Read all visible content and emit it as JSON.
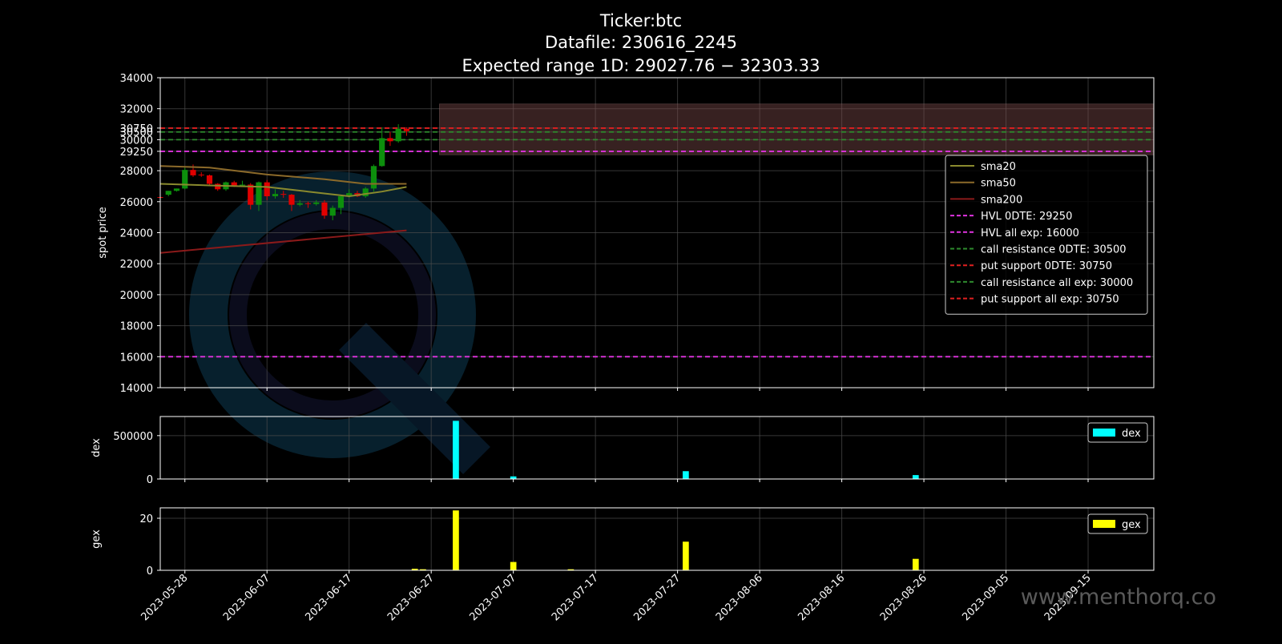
{
  "title": {
    "line1": "Ticker:btc",
    "line2": "Datafile: 230616_2245",
    "line3": "Expected range 1D: 29027.76 − 32303.33"
  },
  "watermark": {
    "text": "www.menthorq.co",
    "logo_icon": "menthorq-q-logo"
  },
  "colors": {
    "background": "#000000",
    "axes": "#ffffff",
    "grid": "#4d4d4d",
    "up_candle": "#0d8f0d",
    "down_candle": "#e00000",
    "sma20": "#8a8a2e",
    "sma50": "#8c6a2a",
    "sma200": "#8b1a1a",
    "hvl": "#e033e0",
    "call_resistance": "#2e8b2e",
    "put_support": "#e02020",
    "expected_range": "#7a4a4a",
    "dex": "#00ffff",
    "gex": "#ffff00",
    "watermark": "#5a5a5a"
  },
  "chart_data": [
    {
      "id": "price",
      "type": "candlestick",
      "ylabel": "spot price",
      "ylim": [
        14000,
        34000
      ],
      "yticks": [
        14000,
        16000,
        18000,
        20000,
        22000,
        24000,
        26000,
        28000,
        29250,
        30000,
        30500,
        30750,
        32000,
        34000
      ],
      "xlim": [
        "2023-05-25",
        "2023-09-23"
      ],
      "grid": true,
      "legend": "right",
      "expected_range": [
        29027.76,
        32303.33
      ],
      "expected_range_start": "2023-06-28",
      "candles": [
        {
          "date": "2023-05-25",
          "o": 26300,
          "h": 26400,
          "l": 26100,
          "c": 26250
        },
        {
          "date": "2023-05-26",
          "o": 26450,
          "h": 26700,
          "l": 26350,
          "c": 26700
        },
        {
          "date": "2023-05-27",
          "o": 26700,
          "h": 26850,
          "l": 26650,
          "c": 26850
        },
        {
          "date": "2023-05-28",
          "o": 26850,
          "h": 28200,
          "l": 26800,
          "c": 28050
        },
        {
          "date": "2023-05-29",
          "o": 28050,
          "h": 28400,
          "l": 27600,
          "c": 27700
        },
        {
          "date": "2023-05-30",
          "o": 27750,
          "h": 27900,
          "l": 27600,
          "c": 27700
        },
        {
          "date": "2023-05-31",
          "o": 27700,
          "h": 27750,
          "l": 27000,
          "c": 27150
        },
        {
          "date": "2023-06-01",
          "o": 27150,
          "h": 27200,
          "l": 26700,
          "c": 26800
        },
        {
          "date": "2023-06-02",
          "o": 26800,
          "h": 27300,
          "l": 26700,
          "c": 27250
        },
        {
          "date": "2023-06-03",
          "o": 27250,
          "h": 27350,
          "l": 26950,
          "c": 27050
        },
        {
          "date": "2023-06-04",
          "o": 27050,
          "h": 27350,
          "l": 26950,
          "c": 27100
        },
        {
          "date": "2023-06-05",
          "o": 27100,
          "h": 27200,
          "l": 25500,
          "c": 25800
        },
        {
          "date": "2023-06-06",
          "o": 25800,
          "h": 27300,
          "l": 25400,
          "c": 27250
        },
        {
          "date": "2023-06-07",
          "o": 27250,
          "h": 27400,
          "l": 26100,
          "c": 26350
        },
        {
          "date": "2023-06-08",
          "o": 26350,
          "h": 26800,
          "l": 26200,
          "c": 26500
        },
        {
          "date": "2023-06-09",
          "o": 26500,
          "h": 26700,
          "l": 26250,
          "c": 26450
        },
        {
          "date": "2023-06-10",
          "o": 26450,
          "h": 26500,
          "l": 25400,
          "c": 25800
        },
        {
          "date": "2023-06-11",
          "o": 25800,
          "h": 26100,
          "l": 25700,
          "c": 25900
        },
        {
          "date": "2023-06-12",
          "o": 25900,
          "h": 26000,
          "l": 25600,
          "c": 25850
        },
        {
          "date": "2023-06-13",
          "o": 25850,
          "h": 26100,
          "l": 25750,
          "c": 25950
        },
        {
          "date": "2023-06-14",
          "o": 25950,
          "h": 26100,
          "l": 24900,
          "c": 25100
        },
        {
          "date": "2023-06-15",
          "o": 25100,
          "h": 25750,
          "l": 24800,
          "c": 25600
        },
        {
          "date": "2023-06-16",
          "o": 25600,
          "h": 26450,
          "l": 25200,
          "c": 26350
        },
        {
          "date": "2023-06-17",
          "o": 26350,
          "h": 26800,
          "l": 26250,
          "c": 26550
        },
        {
          "date": "2023-06-18",
          "o": 26550,
          "h": 26700,
          "l": 26300,
          "c": 26350
        },
        {
          "date": "2023-06-19",
          "o": 26350,
          "h": 26950,
          "l": 26250,
          "c": 26850
        },
        {
          "date": "2023-06-20",
          "o": 26850,
          "h": 28400,
          "l": 26650,
          "c": 28300
        },
        {
          "date": "2023-06-21",
          "o": 28300,
          "h": 30800,
          "l": 28250,
          "c": 30100
        },
        {
          "date": "2023-06-22",
          "o": 30100,
          "h": 30500,
          "l": 29600,
          "c": 29900
        },
        {
          "date": "2023-06-23",
          "o": 29900,
          "h": 31000,
          "l": 29800,
          "c": 30700
        },
        {
          "date": "2023-06-24",
          "o": 30700,
          "h": 30800,
          "l": 30250,
          "c": 30550
        }
      ],
      "sma20": [
        [
          "2023-05-25",
          27150
        ],
        [
          "2023-05-31",
          27050
        ],
        [
          "2023-06-07",
          26950
        ],
        [
          "2023-06-12",
          26650
        ],
        [
          "2023-06-17",
          26350
        ],
        [
          "2023-06-21",
          26650
        ],
        [
          "2023-06-24",
          26950
        ]
      ],
      "sma50": [
        [
          "2023-05-25",
          28300
        ],
        [
          "2023-05-31",
          28200
        ],
        [
          "2023-06-07",
          27750
        ],
        [
          "2023-06-14",
          27450
        ],
        [
          "2023-06-19",
          27150
        ],
        [
          "2023-06-24",
          27150
        ]
      ],
      "sma200": [
        [
          "2023-05-25",
          22700
        ],
        [
          "2023-06-24",
          24150
        ]
      ],
      "levels": [
        {
          "name": "HVL 0DTE: 29250",
          "value": 29250,
          "color_key": "hvl"
        },
        {
          "name": "HVL all exp: 16000",
          "value": 16000,
          "color_key": "hvl"
        },
        {
          "name": "call resistance 0DTE: 30500",
          "value": 30500,
          "color_key": "call_resistance"
        },
        {
          "name": "put support 0DTE: 30750",
          "value": 30750,
          "color_key": "put_support"
        },
        {
          "name": "call resistance all exp: 30000",
          "value": 30000,
          "color_key": "call_resistance"
        },
        {
          "name": "put support all exp: 30750",
          "value": 30750,
          "color_key": "put_support"
        }
      ],
      "legend_entries": [
        {
          "name": "sma20",
          "color_key": "sma20",
          "style": "solid"
        },
        {
          "name": "sma50",
          "color_key": "sma50",
          "style": "solid"
        },
        {
          "name": "sma200",
          "color_key": "sma200",
          "style": "solid"
        },
        {
          "name": "HVL 0DTE: 29250",
          "color_key": "hvl",
          "style": "dashed"
        },
        {
          "name": "HVL all exp: 16000",
          "color_key": "hvl",
          "style": "dashed"
        },
        {
          "name": "call resistance 0DTE: 30500",
          "color_key": "call_resistance",
          "style": "dashed"
        },
        {
          "name": "put support 0DTE: 30750",
          "color_key": "put_support",
          "style": "dashed"
        },
        {
          "name": "call resistance all exp: 30000",
          "color_key": "call_resistance",
          "style": "dashed"
        },
        {
          "name": "put support all exp: 30750",
          "color_key": "put_support",
          "style": "dashed"
        }
      ]
    },
    {
      "id": "dex",
      "type": "bar",
      "ylabel": "dex",
      "ylim": [
        0,
        720000
      ],
      "yticks": [
        0,
        500000
      ],
      "xlim": [
        "2023-05-25",
        "2023-09-23"
      ],
      "grid": true,
      "legend": "top-right",
      "series_name": "dex",
      "bars": [
        {
          "date": "2023-06-30",
          "value": 670000
        },
        {
          "date": "2023-07-07",
          "value": 30000
        },
        {
          "date": "2023-07-28",
          "value": 90000
        },
        {
          "date": "2023-08-25",
          "value": 45000
        }
      ]
    },
    {
      "id": "gex",
      "type": "bar",
      "ylabel": "gex",
      "ylim": [
        0,
        24
      ],
      "yticks": [
        0,
        20
      ],
      "xlim": [
        "2023-05-25",
        "2023-09-23"
      ],
      "xticks": [
        "2023-05-28",
        "2023-06-07",
        "2023-06-17",
        "2023-06-27",
        "2023-07-07",
        "2023-07-17",
        "2023-07-27",
        "2023-08-06",
        "2023-08-16",
        "2023-08-26",
        "2023-09-05",
        "2023-09-15"
      ],
      "grid": true,
      "legend": "top-right",
      "series_name": "gex",
      "bars": [
        {
          "date": "2023-06-25",
          "value": 0.6
        },
        {
          "date": "2023-06-26",
          "value": 0.4
        },
        {
          "date": "2023-06-30",
          "value": 23
        },
        {
          "date": "2023-07-07",
          "value": 3.2
        },
        {
          "date": "2023-07-14",
          "value": 0.4
        },
        {
          "date": "2023-07-28",
          "value": 11
        },
        {
          "date": "2023-08-25",
          "value": 4.4
        }
      ]
    }
  ]
}
